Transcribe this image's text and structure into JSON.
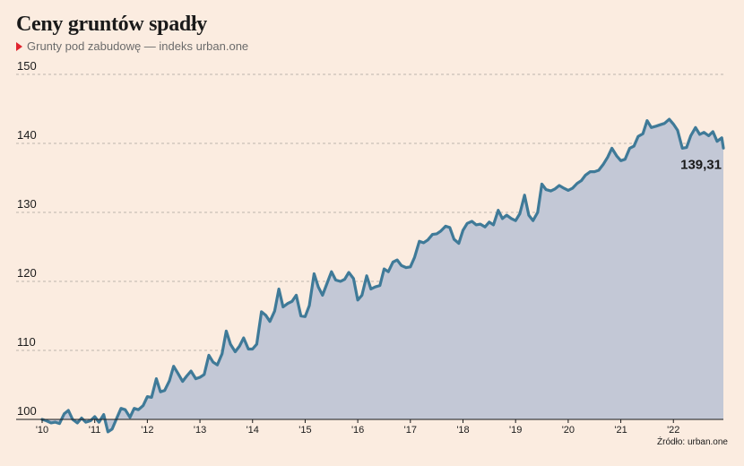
{
  "header": {
    "title": "Ceny gruntów spadły",
    "subtitle": "Grunty pod zabudowę — indeks urban.one"
  },
  "source": "Źródło: urban.one",
  "colors": {
    "line": "#3f7a98",
    "area": "#c3c8d6",
    "background": "#fbece0",
    "accent": "#e0242e"
  },
  "chart_data": {
    "type": "area",
    "title": "Ceny gruntów spadły",
    "subtitle": "Grunty pod zabudowę — indeks urban.one",
    "ylim": [
      100,
      150
    ],
    "yticks": [
      100,
      110,
      120,
      130,
      140,
      150
    ],
    "xlim": [
      2010,
      2022.95
    ],
    "xticks": [
      {
        "value": 2010,
        "label": "'10"
      },
      {
        "value": 2011,
        "label": "'11"
      },
      {
        "value": 2012,
        "label": "'12"
      },
      {
        "value": 2013,
        "label": "'13"
      },
      {
        "value": 2014,
        "label": "'14"
      },
      {
        "value": 2015,
        "label": "'15"
      },
      {
        "value": 2016,
        "label": "'16"
      },
      {
        "value": 2017,
        "label": "'17"
      },
      {
        "value": 2018,
        "label": "'18"
      },
      {
        "value": 2019,
        "label": "'19"
      },
      {
        "value": 2020,
        "label": "'20"
      },
      {
        "value": 2021,
        "label": "'21"
      },
      {
        "value": 2022,
        "label": "'22"
      }
    ],
    "grid": "horizontal-dashed",
    "last_value_label": "139,31",
    "series": [
      {
        "points": [
          [
            2010.0,
            100.0
          ],
          [
            2010.08,
            99.8
          ],
          [
            2010.17,
            99.5
          ],
          [
            2010.25,
            99.6
          ],
          [
            2010.33,
            99.4
          ],
          [
            2010.42,
            100.8
          ],
          [
            2010.5,
            101.3
          ],
          [
            2010.58,
            100.0
          ],
          [
            2010.67,
            99.5
          ],
          [
            2010.75,
            100.2
          ],
          [
            2010.83,
            99.6
          ],
          [
            2010.92,
            99.8
          ],
          [
            2011.0,
            100.4
          ],
          [
            2011.08,
            99.6
          ],
          [
            2011.17,
            100.7
          ],
          [
            2011.25,
            98.2
          ],
          [
            2011.33,
            98.6
          ],
          [
            2011.42,
            100.2
          ],
          [
            2011.5,
            101.6
          ],
          [
            2011.58,
            101.4
          ],
          [
            2011.67,
            100.3
          ],
          [
            2011.75,
            101.6
          ],
          [
            2011.83,
            101.4
          ],
          [
            2011.92,
            102.0
          ],
          [
            2012.0,
            103.3
          ],
          [
            2012.08,
            103.2
          ],
          [
            2012.17,
            105.9
          ],
          [
            2012.25,
            104.0
          ],
          [
            2012.33,
            104.2
          ],
          [
            2012.42,
            105.6
          ],
          [
            2012.5,
            107.7
          ],
          [
            2012.58,
            106.7
          ],
          [
            2012.67,
            105.5
          ],
          [
            2012.75,
            106.3
          ],
          [
            2012.83,
            107.0
          ],
          [
            2012.92,
            105.9
          ],
          [
            2013.0,
            106.1
          ],
          [
            2013.08,
            106.5
          ],
          [
            2013.17,
            109.3
          ],
          [
            2013.25,
            108.3
          ],
          [
            2013.33,
            107.9
          ],
          [
            2013.42,
            109.5
          ],
          [
            2013.5,
            112.8
          ],
          [
            2013.58,
            110.9
          ],
          [
            2013.67,
            109.8
          ],
          [
            2013.75,
            110.6
          ],
          [
            2013.83,
            111.8
          ],
          [
            2013.92,
            110.2
          ],
          [
            2014.0,
            110.2
          ],
          [
            2014.08,
            110.9
          ],
          [
            2014.17,
            115.6
          ],
          [
            2014.25,
            115.1
          ],
          [
            2014.33,
            114.2
          ],
          [
            2014.42,
            115.7
          ],
          [
            2014.5,
            118.9
          ],
          [
            2014.58,
            116.3
          ],
          [
            2014.67,
            116.8
          ],
          [
            2014.75,
            117.1
          ],
          [
            2014.83,
            118.0
          ],
          [
            2014.92,
            115.0
          ],
          [
            2015.0,
            114.9
          ],
          [
            2015.08,
            116.5
          ],
          [
            2015.17,
            121.1
          ],
          [
            2015.25,
            119.2
          ],
          [
            2015.33,
            118.0
          ],
          [
            2015.42,
            119.8
          ],
          [
            2015.5,
            121.4
          ],
          [
            2015.58,
            120.2
          ],
          [
            2015.67,
            120.0
          ],
          [
            2015.75,
            120.3
          ],
          [
            2015.83,
            121.3
          ],
          [
            2015.92,
            120.4
          ],
          [
            2016.0,
            117.3
          ],
          [
            2016.08,
            118.0
          ],
          [
            2016.17,
            120.8
          ],
          [
            2016.25,
            118.9
          ],
          [
            2016.33,
            119.2
          ],
          [
            2016.42,
            119.4
          ],
          [
            2016.5,
            121.8
          ],
          [
            2016.58,
            121.4
          ],
          [
            2016.67,
            122.8
          ],
          [
            2016.75,
            123.1
          ],
          [
            2016.83,
            122.3
          ],
          [
            2016.92,
            122.0
          ],
          [
            2017.0,
            122.1
          ],
          [
            2017.08,
            123.5
          ],
          [
            2017.17,
            125.8
          ],
          [
            2017.25,
            125.6
          ],
          [
            2017.33,
            126.0
          ],
          [
            2017.42,
            126.8
          ],
          [
            2017.5,
            126.9
          ],
          [
            2017.58,
            127.3
          ],
          [
            2017.67,
            128.0
          ],
          [
            2017.75,
            127.8
          ],
          [
            2017.83,
            126.1
          ],
          [
            2017.92,
            125.5
          ],
          [
            2018.0,
            127.4
          ],
          [
            2018.08,
            128.4
          ],
          [
            2018.17,
            128.7
          ],
          [
            2018.25,
            128.2
          ],
          [
            2018.33,
            128.3
          ],
          [
            2018.42,
            127.9
          ],
          [
            2018.5,
            128.6
          ],
          [
            2018.58,
            128.2
          ],
          [
            2018.67,
            130.3
          ],
          [
            2018.75,
            129.1
          ],
          [
            2018.83,
            129.6
          ],
          [
            2018.92,
            129.1
          ],
          [
            2019.0,
            128.8
          ],
          [
            2019.08,
            129.8
          ],
          [
            2019.17,
            132.5
          ],
          [
            2019.25,
            129.6
          ],
          [
            2019.33,
            128.8
          ],
          [
            2019.42,
            130.0
          ],
          [
            2019.5,
            134.1
          ],
          [
            2019.58,
            133.3
          ],
          [
            2019.67,
            133.1
          ],
          [
            2019.75,
            133.4
          ],
          [
            2019.83,
            133.9
          ],
          [
            2019.92,
            133.5
          ],
          [
            2020.0,
            133.2
          ],
          [
            2020.08,
            133.5
          ],
          [
            2020.17,
            134.2
          ],
          [
            2020.25,
            134.6
          ],
          [
            2020.33,
            135.4
          ],
          [
            2020.42,
            135.9
          ],
          [
            2020.5,
            135.9
          ],
          [
            2020.58,
            136.1
          ],
          [
            2020.67,
            137.0
          ],
          [
            2020.75,
            138.0
          ],
          [
            2020.83,
            139.3
          ],
          [
            2020.92,
            138.2
          ],
          [
            2021.0,
            137.5
          ],
          [
            2021.08,
            137.7
          ],
          [
            2021.17,
            139.3
          ],
          [
            2021.25,
            139.6
          ],
          [
            2021.33,
            141.0
          ],
          [
            2021.42,
            141.4
          ],
          [
            2021.5,
            143.3
          ],
          [
            2021.58,
            142.3
          ],
          [
            2021.67,
            142.5
          ],
          [
            2021.75,
            142.7
          ],
          [
            2021.83,
            142.9
          ],
          [
            2021.92,
            143.5
          ],
          [
            2022.0,
            142.8
          ],
          [
            2022.08,
            141.9
          ],
          [
            2022.17,
            139.3
          ],
          [
            2022.25,
            139.4
          ],
          [
            2022.33,
            141.1
          ],
          [
            2022.42,
            142.3
          ],
          [
            2022.5,
            141.3
          ],
          [
            2022.58,
            141.6
          ],
          [
            2022.67,
            141.1
          ],
          [
            2022.75,
            141.7
          ],
          [
            2022.83,
            140.3
          ],
          [
            2022.92,
            140.8
          ],
          [
            2022.95,
            139.31
          ]
        ]
      }
    ]
  }
}
